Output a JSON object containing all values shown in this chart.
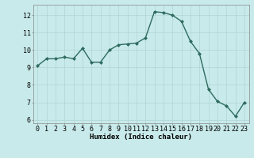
{
  "x": [
    0,
    1,
    2,
    3,
    4,
    5,
    6,
    7,
    8,
    9,
    10,
    11,
    12,
    13,
    14,
    15,
    16,
    17,
    18,
    19,
    20,
    21,
    22,
    23
  ],
  "y": [
    9.1,
    9.5,
    9.5,
    9.6,
    9.5,
    10.1,
    9.3,
    9.3,
    10.0,
    10.3,
    10.35,
    10.4,
    10.7,
    12.2,
    12.15,
    12.0,
    11.65,
    10.5,
    9.8,
    7.75,
    7.05,
    6.8,
    6.2,
    7.0
  ],
  "line_color": "#2e6b5e",
  "marker": "D",
  "marker_size": 2,
  "bg_color": "#c8eaea",
  "grid_color": "#b0d4d4",
  "xlabel": "Humidex (Indice chaleur)",
  "xlim": [
    -0.5,
    23.5
  ],
  "ylim": [
    5.8,
    12.6
  ],
  "yticks": [
    6,
    7,
    8,
    9,
    10,
    11,
    12
  ],
  "xticks": [
    0,
    1,
    2,
    3,
    4,
    5,
    6,
    7,
    8,
    9,
    10,
    11,
    12,
    13,
    14,
    15,
    16,
    17,
    18,
    19,
    20,
    21,
    22,
    23
  ],
  "xtick_labels": [
    "0",
    "1",
    "2",
    "3",
    "4",
    "5",
    "6",
    "7",
    "8",
    "9",
    "10",
    "11",
    "12",
    "13",
    "14",
    "15",
    "16",
    "17",
    "18",
    "19",
    "20",
    "21",
    "22",
    "23"
  ],
  "label_fontsize": 6.5,
  "tick_fontsize": 6,
  "linewidth": 1.0
}
